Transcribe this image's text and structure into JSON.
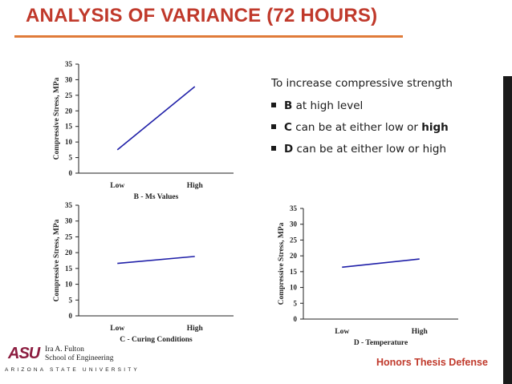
{
  "slide": {
    "title": "ANALYSIS OF VARIANCE (72 HOURS)",
    "footer": "Honors Thesis Defense",
    "colors": {
      "title": "#c0392b",
      "rule": "#e07b39",
      "line": "#1f1fa8",
      "text": "#1a1a1a"
    }
  },
  "bullets": {
    "lead": "To increase compressive strength",
    "items": [
      {
        "bold_letter": "B",
        "text_before": "",
        "text_after": " at high level",
        "bold_tail": ""
      },
      {
        "bold_letter": "C",
        "text_before": "",
        "text_after": " can be at either low or ",
        "bold_tail": "high"
      },
      {
        "bold_letter": "D",
        "text_before": "",
        "text_after": " can be at either low or high",
        "bold_tail": ""
      }
    ]
  },
  "logo": {
    "mark": "ASU",
    "name_line1": "Ira A. Fulton",
    "name_line2": "School of Engineering",
    "university": "ARIZONA STATE UNIVERSITY"
  },
  "chart_data": [
    {
      "type": "line",
      "title": "",
      "xlabel": "B - Ms Values",
      "ylabel": "Compressive Stress, MPa",
      "categories": [
        "Low",
        "High"
      ],
      "series": [
        {
          "name": "B",
          "values": [
            7.5,
            27.8
          ]
        }
      ],
      "ylim": [
        0,
        35
      ],
      "yticks": [
        0,
        5,
        10,
        15,
        20,
        25,
        30,
        35
      ]
    },
    {
      "type": "line",
      "title": "",
      "xlabel": "C - Curing Conditions",
      "ylabel": "Compressive Stress, MPa",
      "categories": [
        "Low",
        "High"
      ],
      "series": [
        {
          "name": "C",
          "values": [
            16.6,
            18.8
          ]
        }
      ],
      "ylim": [
        0,
        35
      ],
      "yticks": [
        0,
        5,
        10,
        15,
        20,
        25,
        30,
        35
      ]
    },
    {
      "type": "line",
      "title": "",
      "xlabel": "D - Temperature",
      "ylabel": "Compressive Stress, MPa",
      "categories": [
        "Low",
        "High"
      ],
      "series": [
        {
          "name": "D",
          "values": [
            16.4,
            19.0
          ]
        }
      ],
      "ylim": [
        0,
        35
      ],
      "yticks": [
        0,
        5,
        10,
        15,
        20,
        25,
        30,
        35
      ]
    }
  ]
}
